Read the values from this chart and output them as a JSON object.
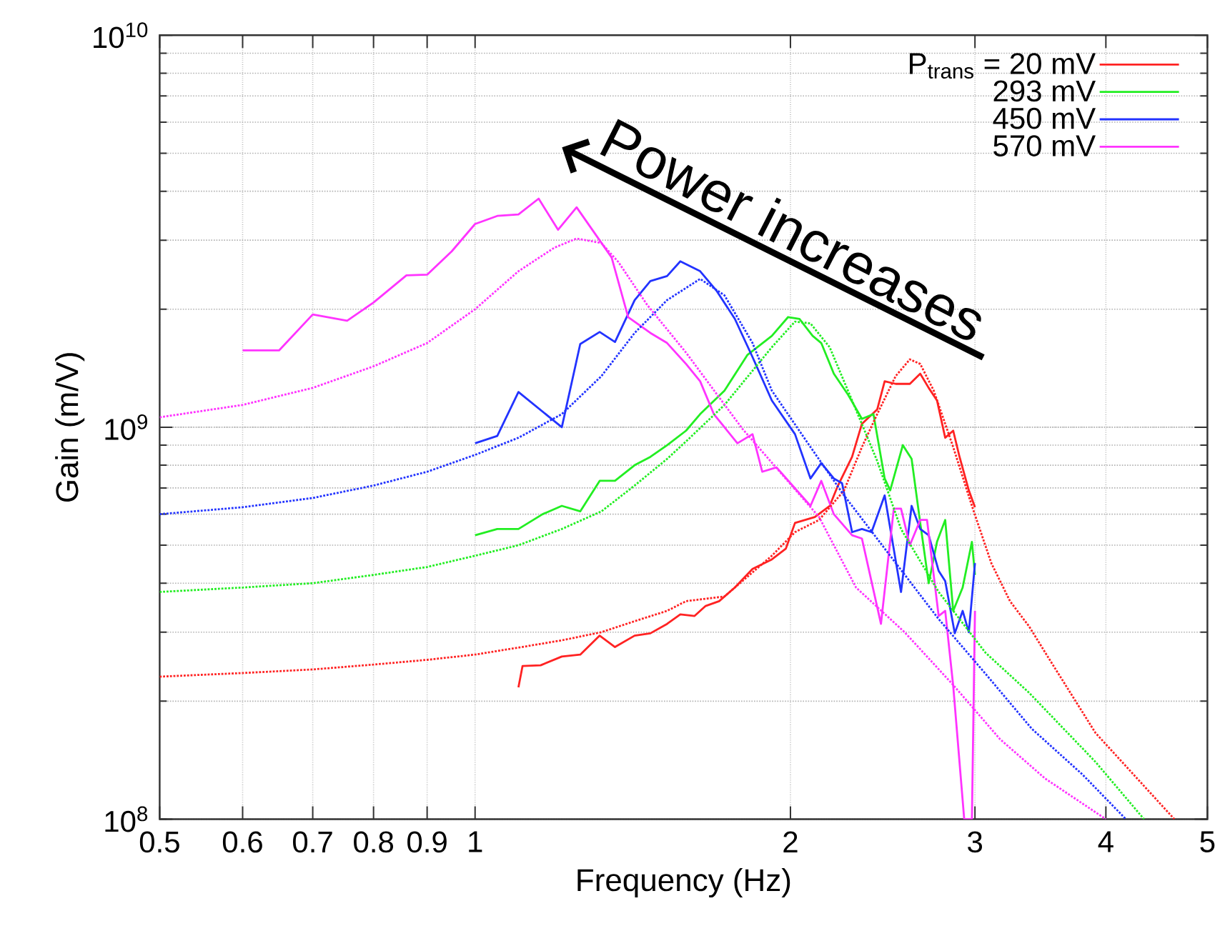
{
  "chart_data": {
    "type": "line",
    "xlabel": "Frequency (Hz)",
    "ylabel": "Gain (m/V)",
    "annotations": [
      "Power increases"
    ],
    "log": "xy",
    "grid": true,
    "legend": "top right",
    "marker": "none",
    "line_style": "solid",
    "xlim": [
      0.5,
      5
    ],
    "ylim": [
      100000000,
      10000000000
    ],
    "xticks": [
      0.5,
      0.6,
      0.7,
      0.8,
      0.9,
      1,
      2,
      3,
      4,
      5
    ],
    "yticks": [
      {
        "value": 100000000,
        "label": "10$^{8}$"
      },
      {
        "value": 1000000000,
        "label": "10$^{9}$"
      },
      {
        "value": 10000000000,
        "label": "10$^{10}$"
      }
    ],
    "series": [
      {
        "name": "P$_{trans}$ = 20  mV",
        "color": "#ff2222",
        "x": [
          1.1,
          1.11,
          1.155,
          1.21,
          1.26,
          1.315,
          1.36,
          1.42,
          1.47,
          1.525,
          1.57,
          1.62,
          1.66,
          1.71,
          1.77,
          1.84,
          1.92,
          1.98,
          2.02,
          2.11,
          2.18,
          2.22,
          2.29,
          2.34,
          2.42,
          2.46,
          2.52,
          2.6,
          2.66,
          2.71,
          2.76,
          2.81,
          2.86,
          2.9,
          2.96,
          3.0
        ],
        "values": [
          217000000.0,
          246000000.0,
          247000000.0,
          260000000.0,
          263000000.0,
          294000000.0,
          275000000.0,
          294000000.0,
          298000000.0,
          315000000.0,
          333000000.0,
          330000000.0,
          350000000.0,
          360000000.0,
          390000000.0,
          435000000.0,
          460000000.0,
          490000000.0,
          570000000.0,
          590000000.0,
          630000000.0,
          710000000.0,
          840000000.0,
          1020000000.0,
          1110000000.0,
          1310000000.0,
          1290000000.0,
          1290000000.0,
          1370000000.0,
          1260000000.0,
          1170000000.0,
          940000000.0,
          980000000.0,
          840000000.0,
          690000000.0,
          625000000.0
        ]
      },
      {
        "name": "293 mV",
        "color": "#22ee22",
        "x": [
          1.0,
          1.05,
          1.1,
          1.16,
          1.21,
          1.26,
          1.315,
          1.36,
          1.42,
          1.47,
          1.525,
          1.59,
          1.64,
          1.73,
          1.82,
          1.92,
          1.99,
          2.04,
          2.1,
          2.14,
          2.2,
          2.27,
          2.34,
          2.4,
          2.46,
          2.49,
          2.56,
          2.61,
          2.66,
          2.71,
          2.76,
          2.81,
          2.86,
          2.92,
          2.98,
          3.0
        ],
        "values": [
          530000000.0,
          550000000.0,
          550000000.0,
          600000000.0,
          630000000.0,
          610000000.0,
          730000000.0,
          730000000.0,
          800000000.0,
          840000000.0,
          900000000.0,
          980000000.0,
          1080000000.0,
          1240000000.0,
          1530000000.0,
          1710000000.0,
          1910000000.0,
          1890000000.0,
          1710000000.0,
          1640000000.0,
          1370000000.0,
          1210000000.0,
          1050000000.0,
          1080000000.0,
          740000000.0,
          690000000.0,
          900000000.0,
          830000000.0,
          570000000.0,
          400000000.0,
          510000000.0,
          580000000.0,
          340000000.0,
          390000000.0,
          510000000.0,
          420000000.0
        ]
      },
      {
        "name": "450 mV",
        "color": "#2233ff",
        "x": [
          1.0,
          1.05,
          1.1,
          1.21,
          1.26,
          1.315,
          1.36,
          1.42,
          1.47,
          1.525,
          1.57,
          1.64,
          1.7,
          1.77,
          1.84,
          1.92,
          2.02,
          2.09,
          2.14,
          2.2,
          2.24,
          2.29,
          2.34,
          2.39,
          2.46,
          2.55,
          2.61,
          2.66,
          2.71,
          2.77,
          2.81,
          2.87,
          2.92,
          2.96,
          3.0
        ],
        "values": [
          910000000.0,
          950000000.0,
          1230000000.0,
          1000000000.0,
          1630000000.0,
          1750000000.0,
          1650000000.0,
          2110000000.0,
          2360000000.0,
          2430000000.0,
          2650000000.0,
          2500000000.0,
          2230000000.0,
          1890000000.0,
          1510000000.0,
          1170000000.0,
          960000000.0,
          740000000.0,
          810000000.0,
          740000000.0,
          720000000.0,
          540000000.0,
          550000000.0,
          540000000.0,
          670000000.0,
          380000000.0,
          630000000.0,
          550000000.0,
          530000000.0,
          430000000.0,
          405000000.0,
          298000000.0,
          340000000.0,
          300000000.0,
          450000000.0
        ]
      },
      {
        "name": "570 mV",
        "color": "#ff33ff",
        "x": [
          0.6,
          0.65,
          0.7,
          0.755,
          0.8,
          0.86,
          0.9,
          0.95,
          1.0,
          1.05,
          1.1,
          1.15,
          1.2,
          1.25,
          1.35,
          1.4,
          1.47,
          1.525,
          1.59,
          1.64,
          1.69,
          1.78,
          1.84,
          1.88,
          1.94,
          2.09,
          2.14,
          2.2,
          2.29,
          2.34,
          2.44,
          2.51,
          2.55,
          2.6,
          2.66,
          2.7,
          2.77,
          2.81,
          2.86,
          2.93,
          2.98,
          3.0
        ],
        "values": [
          1570000000.0,
          1570000000.0,
          1940000000.0,
          1870000000.0,
          2080000000.0,
          2440000000.0,
          2450000000.0,
          2810000000.0,
          3300000000.0,
          3460000000.0,
          3490000000.0,
          3830000000.0,
          3190000000.0,
          3640000000.0,
          2710000000.0,
          1910000000.0,
          1740000000.0,
          1640000000.0,
          1450000000.0,
          1310000000.0,
          1080000000.0,
          910000000.0,
          960000000.0,
          770000000.0,
          790000000.0,
          630000000.0,
          730000000.0,
          600000000.0,
          530000000.0,
          520000000.0,
          315000000.0,
          620000000.0,
          620000000.0,
          500000000.0,
          580000000.0,
          580000000.0,
          330000000.0,
          340000000.0,
          219000000.0,
          100000000.0,
          100000000.0,
          340000000.0
        ]
      },
      {
        "color": "#ff2222",
        "line_style": "dotted",
        "x": [
          0.5,
          0.6,
          0.7,
          0.8,
          0.9,
          1.0,
          1.1,
          1.21,
          1.32,
          1.42,
          1.525,
          1.59,
          1.73,
          1.92,
          2.02,
          2.13,
          2.25,
          2.34,
          2.42,
          2.52,
          2.6,
          2.66,
          2.74,
          2.86,
          2.98,
          3.11,
          3.24,
          3.38,
          3.52,
          3.91,
          4.65
        ],
        "values": [
          231000000.0,
          236000000.0,
          241000000.0,
          248000000.0,
          255000000.0,
          263000000.0,
          274000000.0,
          286000000.0,
          300000000.0,
          320000000.0,
          340000000.0,
          360000000.0,
          370000000.0,
          470000000.0,
          540000000.0,
          580000000.0,
          690000000.0,
          890000000.0,
          1080000000.0,
          1350000000.0,
          1490000000.0,
          1450000000.0,
          1240000000.0,
          890000000.0,
          630000000.0,
          450000000.0,
          360000000.0,
          310000000.0,
          260000000.0,
          166000000.0,
          100000000.0
        ]
      },
      {
        "color": "#22ee22",
        "line_style": "dotted",
        "x": [
          0.5,
          0.6,
          0.7,
          0.8,
          0.9,
          1.0,
          1.1,
          1.21,
          1.32,
          1.42,
          1.525,
          1.59,
          1.73,
          1.92,
          2.02,
          2.09,
          2.18,
          2.29,
          2.42,
          2.55,
          2.77,
          3.07,
          3.38,
          3.91,
          4.35
        ],
        "values": [
          380000000.0,
          390000000.0,
          400000000.0,
          420000000.0,
          440000000.0,
          470000000.0,
          500000000.0,
          550000000.0,
          610000000.0,
          710000000.0,
          830000000.0,
          920000000.0,
          1140000000.0,
          1600000000.0,
          1860000000.0,
          1840000000.0,
          1600000000.0,
          1170000000.0,
          820000000.0,
          550000000.0,
          380000000.0,
          266000000.0,
          210000000.0,
          140000000.0,
          100000000.0
        ]
      },
      {
        "color": "#2233ff",
        "line_style": "dotted",
        "x": [
          0.5,
          0.6,
          0.7,
          0.8,
          0.9,
          1.0,
          1.1,
          1.21,
          1.32,
          1.42,
          1.525,
          1.64,
          1.73,
          1.84,
          1.92,
          2.09,
          2.25,
          2.49,
          2.77,
          3.07,
          3.4,
          3.8,
          4.18
        ],
        "values": [
          600000000.0,
          625000000.0,
          660000000.0,
          710000000.0,
          770000000.0,
          850000000.0,
          940000000.0,
          1080000000.0,
          1350000000.0,
          1740000000.0,
          2110000000.0,
          2390000000.0,
          2170000000.0,
          1640000000.0,
          1240000000.0,
          890000000.0,
          670000000.0,
          470000000.0,
          324000000.0,
          235000000.0,
          170000000.0,
          130000000.0,
          100000000.0
        ]
      },
      {
        "color": "#ff33ff",
        "line_style": "dotted",
        "x": [
          0.5,
          0.6,
          0.7,
          0.8,
          0.9,
          1.0,
          1.1,
          1.19,
          1.25,
          1.32,
          1.37,
          1.46,
          1.59,
          1.8,
          2.13,
          2.31,
          2.57,
          2.86,
          3.17,
          3.5,
          4.0
        ],
        "values": [
          1060000000.0,
          1140000000.0,
          1260000000.0,
          1430000000.0,
          1640000000.0,
          2000000000.0,
          2500000000.0,
          2870000000.0,
          3030000000.0,
          2950000000.0,
          2640000000.0,
          2050000000.0,
          1550000000.0,
          990000000.0,
          590000000.0,
          390000000.0,
          300000000.0,
          220000000.0,
          160000000.0,
          127000000.0,
          100000000.0
        ]
      }
    ]
  }
}
